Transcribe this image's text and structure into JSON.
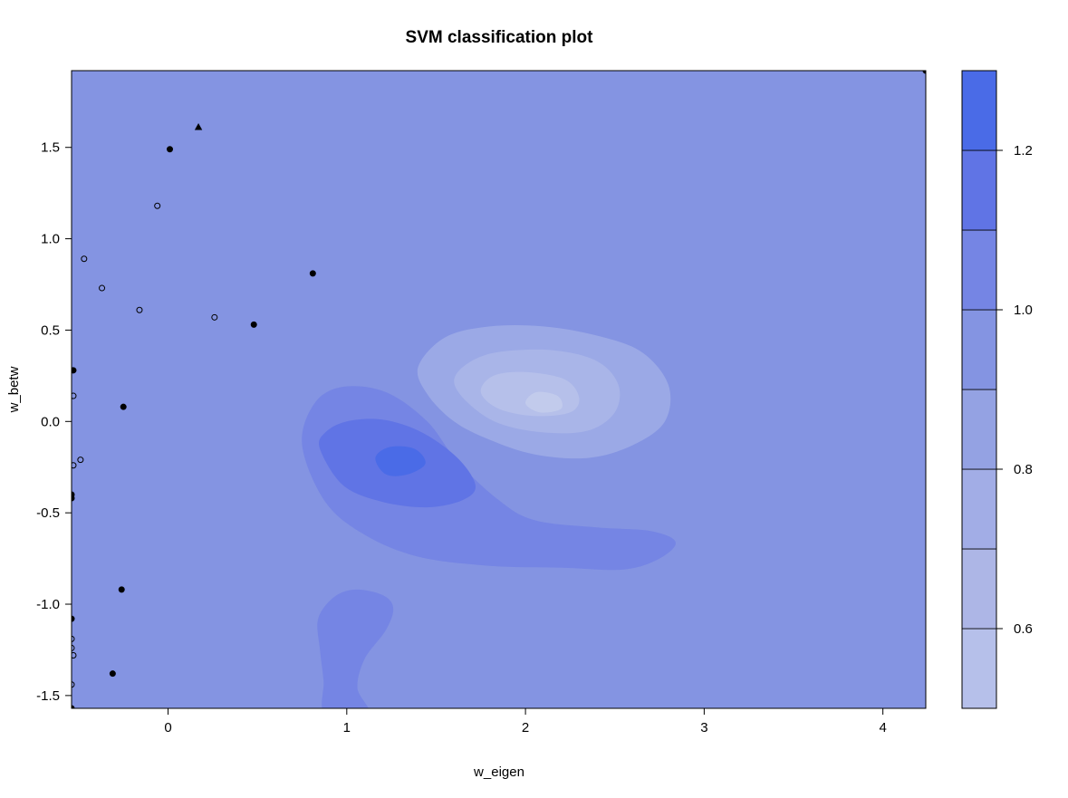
{
  "chart_data": {
    "type": "contour",
    "title": "SVM classification plot",
    "xlabel": "w_eigen",
    "ylabel": "w_betw",
    "xlim": [
      -0.54,
      4.24
    ],
    "ylim": [
      -1.57,
      1.92
    ],
    "x_ticks": [
      {
        "value": 0,
        "label": "0"
      },
      {
        "value": 1,
        "label": "1"
      },
      {
        "value": 2,
        "label": "2"
      },
      {
        "value": 3,
        "label": "3"
      },
      {
        "value": 4,
        "label": "4"
      }
    ],
    "y_ticks": [
      {
        "value": -1.5,
        "label": "-1.5"
      },
      {
        "value": -1.0,
        "label": "-1.0"
      },
      {
        "value": -0.5,
        "label": "-0.5"
      },
      {
        "value": 0.0,
        "label": "0.0"
      },
      {
        "value": 0.5,
        "label": "0.5"
      },
      {
        "value": 1.0,
        "label": "1.0"
      },
      {
        "value": 1.5,
        "label": "1.5"
      }
    ],
    "background_level_color": "#8494e2",
    "contour_regions": [
      {
        "name": "high-1.0-1.1",
        "color": "#7585e4",
        "points": [
          [
            0.75,
            -0.13
          ],
          [
            0.88,
            -0.44
          ],
          [
            1.1,
            -0.62
          ],
          [
            1.4,
            -0.74
          ],
          [
            1.8,
            -0.79
          ],
          [
            2.2,
            -0.8
          ],
          [
            2.55,
            -0.81
          ],
          [
            2.75,
            -0.75
          ],
          [
            2.84,
            -0.66
          ],
          [
            2.7,
            -0.6
          ],
          [
            2.4,
            -0.58
          ],
          [
            2.05,
            -0.54
          ],
          [
            1.85,
            -0.43
          ],
          [
            1.62,
            -0.22
          ],
          [
            1.45,
            0.0
          ],
          [
            1.22,
            0.16
          ],
          [
            0.98,
            0.19
          ],
          [
            0.82,
            0.1
          ]
        ]
      },
      {
        "name": "high-1.1-1.2",
        "color": "#6074e5",
        "points": [
          [
            0.85,
            -0.15
          ],
          [
            0.98,
            -0.35
          ],
          [
            1.2,
            -0.44
          ],
          [
            1.45,
            -0.47
          ],
          [
            1.65,
            -0.43
          ],
          [
            1.72,
            -0.35
          ],
          [
            1.62,
            -0.2
          ],
          [
            1.42,
            -0.06
          ],
          [
            1.2,
            0.01
          ],
          [
            1.0,
            0.0
          ],
          [
            0.88,
            -0.06
          ]
        ]
      },
      {
        "name": "high-1.2-1.3",
        "color": "#4a6be7",
        "points": [
          [
            1.16,
            -0.2
          ],
          [
            1.22,
            -0.29
          ],
          [
            1.34,
            -0.29
          ],
          [
            1.44,
            -0.23
          ],
          [
            1.38,
            -0.15
          ],
          [
            1.24,
            -0.14
          ]
        ]
      },
      {
        "name": "high-lower-blob",
        "color": "#7585e4",
        "points": [
          [
            0.88,
            -1.6
          ],
          [
            1.12,
            -1.6
          ],
          [
            1.06,
            -1.46
          ],
          [
            1.1,
            -1.3
          ],
          [
            1.22,
            -1.14
          ],
          [
            1.26,
            -1.02
          ],
          [
            1.2,
            -0.95
          ],
          [
            1.05,
            -0.92
          ],
          [
            0.93,
            -0.96
          ],
          [
            0.84,
            -1.08
          ],
          [
            0.85,
            -1.25
          ],
          [
            0.87,
            -1.42
          ]
        ]
      },
      {
        "name": "low-0.8-0.9",
        "color": "#9ba9e6",
        "points": [
          [
            1.4,
            0.3
          ],
          [
            1.45,
            0.15
          ],
          [
            1.6,
            0.0
          ],
          [
            1.8,
            -0.1
          ],
          [
            2.05,
            -0.18
          ],
          [
            2.35,
            -0.2
          ],
          [
            2.6,
            -0.13
          ],
          [
            2.78,
            0.0
          ],
          [
            2.8,
            0.2
          ],
          [
            2.65,
            0.38
          ],
          [
            2.4,
            0.47
          ],
          [
            2.1,
            0.52
          ],
          [
            1.8,
            0.52
          ],
          [
            1.55,
            0.46
          ]
        ]
      },
      {
        "name": "low-0.7-0.8",
        "color": "#a9b5e8",
        "points": [
          [
            1.6,
            0.22
          ],
          [
            1.68,
            0.1
          ],
          [
            1.85,
            -0.01
          ],
          [
            2.1,
            -0.06
          ],
          [
            2.35,
            -0.05
          ],
          [
            2.5,
            0.05
          ],
          [
            2.52,
            0.2
          ],
          [
            2.4,
            0.33
          ],
          [
            2.15,
            0.39
          ],
          [
            1.85,
            0.38
          ],
          [
            1.68,
            0.32
          ]
        ]
      },
      {
        "name": "low-0.6-0.7",
        "color": "#b6c0ea",
        "points": [
          [
            1.75,
            0.16
          ],
          [
            1.85,
            0.07
          ],
          [
            2.05,
            0.03
          ],
          [
            2.25,
            0.05
          ],
          [
            2.3,
            0.13
          ],
          [
            2.22,
            0.23
          ],
          [
            2.0,
            0.27
          ],
          [
            1.82,
            0.25
          ]
        ]
      },
      {
        "name": "low-0.5-0.6",
        "color": "#c2cbec",
        "points": [
          [
            2.0,
            0.1
          ],
          [
            2.08,
            0.05
          ],
          [
            2.2,
            0.07
          ],
          [
            2.18,
            0.14
          ],
          [
            2.06,
            0.16
          ]
        ]
      }
    ],
    "points": [
      {
        "x": 0.17,
        "y": 1.61,
        "marker": "triangle"
      },
      {
        "x": 0.01,
        "y": 1.49,
        "marker": "filled"
      },
      {
        "x": -0.06,
        "y": 1.18,
        "marker": "open"
      },
      {
        "x": -0.47,
        "y": 0.89,
        "marker": "open"
      },
      {
        "x": -0.37,
        "y": 0.73,
        "marker": "open"
      },
      {
        "x": 0.81,
        "y": 0.81,
        "marker": "filled"
      },
      {
        "x": -0.16,
        "y": 0.61,
        "marker": "open"
      },
      {
        "x": 0.26,
        "y": 0.57,
        "marker": "open"
      },
      {
        "x": 0.48,
        "y": 0.53,
        "marker": "filled"
      },
      {
        "x": -0.53,
        "y": 0.28,
        "marker": "filled"
      },
      {
        "x": -0.53,
        "y": 0.14,
        "marker": "open"
      },
      {
        "x": -0.25,
        "y": 0.08,
        "marker": "filled"
      },
      {
        "x": -0.49,
        "y": -0.21,
        "marker": "open"
      },
      {
        "x": -0.53,
        "y": -0.24,
        "marker": "open"
      },
      {
        "x": -0.54,
        "y": -0.4,
        "marker": "filled"
      },
      {
        "x": -0.54,
        "y": -0.42,
        "marker": "filled"
      },
      {
        "x": -0.26,
        "y": -0.92,
        "marker": "filled"
      },
      {
        "x": -0.54,
        "y": -1.08,
        "marker": "filled"
      },
      {
        "x": -0.54,
        "y": -1.19,
        "marker": "open"
      },
      {
        "x": -0.54,
        "y": -1.24,
        "marker": "open"
      },
      {
        "x": -0.53,
        "y": -1.28,
        "marker": "open"
      },
      {
        "x": -0.31,
        "y": -1.38,
        "marker": "filled"
      },
      {
        "x": -0.54,
        "y": -1.44,
        "marker": "open"
      },
      {
        "x": -0.54,
        "y": -1.57,
        "marker": "filled"
      },
      {
        "x": 4.24,
        "y": 1.92,
        "marker": "filled"
      }
    ],
    "legend": {
      "placement": "right",
      "range": [
        0.5,
        1.3
      ],
      "levels": [
        {
          "from": 0.5,
          "to": 0.6,
          "color": "#b6c0ea"
        },
        {
          "from": 0.6,
          "to": 0.7,
          "color": "#adb6e6"
        },
        {
          "from": 0.7,
          "to": 0.8,
          "color": "#a2ade6"
        },
        {
          "from": 0.8,
          "to": 0.9,
          "color": "#94a2e3"
        },
        {
          "from": 0.9,
          "to": 1.0,
          "color": "#8494e2"
        },
        {
          "from": 1.0,
          "to": 1.1,
          "color": "#7585e4"
        },
        {
          "from": 1.1,
          "to": 1.2,
          "color": "#6074e5"
        },
        {
          "from": 1.2,
          "to": 1.3,
          "color": "#4a6be7"
        }
      ],
      "ticks": [
        {
          "value": 0.6,
          "label": "0.6"
        },
        {
          "value": 0.8,
          "label": "0.8"
        },
        {
          "value": 1.0,
          "label": "1.0"
        },
        {
          "value": 1.2,
          "label": "1.2"
        }
      ]
    }
  }
}
